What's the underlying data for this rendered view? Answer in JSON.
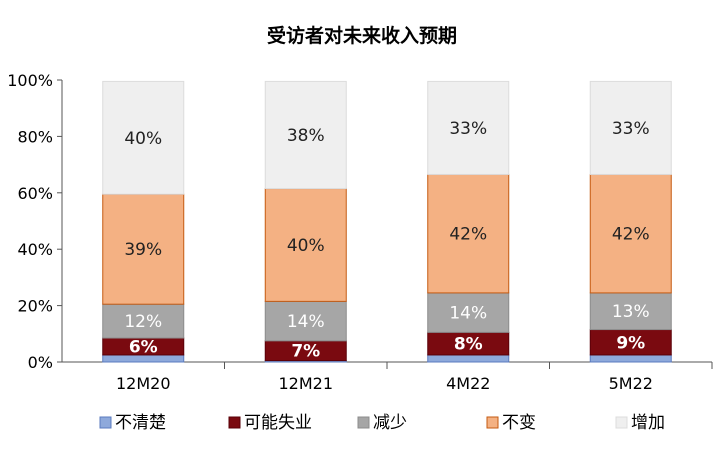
{
  "chart_data": {
    "type": "bar",
    "stacked": true,
    "title": "受访者对未来收入预期",
    "xlabel": "",
    "ylabel": "",
    "ylim": [
      0,
      100
    ],
    "y_unit": "%",
    "yticks": [
      "0%",
      "20%",
      "40%",
      "60%",
      "80%",
      "100%"
    ],
    "categories": [
      "12M20",
      "12M21",
      "4M22",
      "5M22"
    ],
    "grid": false,
    "legend_position": "bottom",
    "series": [
      {
        "name": "不清楚",
        "color": "#8ea9db",
        "edge": "#5b7bbf",
        "label_color": "#ffffff",
        "values": [
          2.5,
          0.5,
          2.5,
          2.5
        ],
        "labels": [
          "",
          "",
          "",
          ""
        ]
      },
      {
        "name": "可能失业",
        "color": "#7a0a10",
        "edge": "#5a0008",
        "label_color": "#ffffff",
        "values": [
          6,
          7,
          8,
          9
        ],
        "labels": [
          "6%",
          "7%",
          "8%",
          "9%"
        ]
      },
      {
        "name": "减少",
        "color": "#a6a6a6",
        "edge": "#8c8c8c",
        "label_color": "#ffffff",
        "values": [
          12,
          14,
          14,
          13
        ],
        "labels": [
          "12%",
          "14%",
          "14%",
          "13%"
        ]
      },
      {
        "name": "不变",
        "color": "#f4b183",
        "edge": "#c55a11",
        "label_color": "#222222",
        "values": [
          39,
          40,
          42,
          42
        ],
        "labels": [
          "39%",
          "40%",
          "42%",
          "42%"
        ]
      },
      {
        "name": "增加",
        "color": "#efefef",
        "edge": "#dcdcdc",
        "label_color": "#222222",
        "values": [
          40,
          38,
          33,
          33
        ],
        "labels": [
          "40%",
          "38%",
          "33%",
          "33%"
        ]
      }
    ]
  }
}
